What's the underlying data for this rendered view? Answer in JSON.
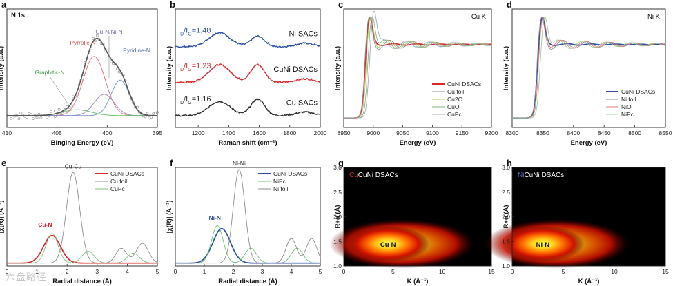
{
  "watermark": "六盘路径",
  "chart_data": [
    {
      "panel": "a",
      "type": "line",
      "title": "N 1s",
      "xlabel": "Binging Energy (eV)",
      "ylabel": "Intensity (a.u.)",
      "xlim": [
        410,
        395
      ],
      "ylim": [
        0,
        1
      ],
      "x_reversed": true,
      "y_ticks_hidden": true,
      "x_ticks": [
        410,
        405,
        400,
        395
      ],
      "series": [
        {
          "name": "Pyrrolic-N",
          "color": "#e8797a",
          "component": {
            "center": 401.3,
            "width": 1.1,
            "height": 0.5
          }
        },
        {
          "name": "Cu-N/Ni-N",
          "color": "#9b8fc0",
          "component": {
            "center": 400.3,
            "width": 1.0,
            "height": 0.18
          }
        },
        {
          "name": "Pyridine-N",
          "color": "#7f95d1",
          "component": {
            "center": 398.7,
            "width": 0.9,
            "height": 0.3
          }
        },
        {
          "name": "Graphitic-N",
          "color": "#6cbf73",
          "component": {
            "center": 403.0,
            "width": 1.4,
            "height": 0.05
          }
        }
      ],
      "envelope_color": "#555555",
      "baseline": 0.1,
      "annotations": [
        "N 1s",
        "Cu-N/Ni-N",
        "Pyrrolic-N",
        "Pyridine-N",
        "Graphitic-N"
      ],
      "annotation_colors": {
        "Cu-N/Ni-N": "#7a6fa8",
        "Pyrrolic-N": "#d9534f",
        "Pyridine-N": "#5a6fb8",
        "Graphitic-N": "#3a9a44"
      }
    },
    {
      "panel": "b",
      "type": "line",
      "xlabel": "Raman shift (cm⁻¹)",
      "ylabel": "Intensity (a.u.)",
      "xlim": [
        1050,
        2000
      ],
      "ylim": [
        0,
        1
      ],
      "y_ticks_hidden": true,
      "x_ticks": [
        1200,
        1400,
        1600,
        1800,
        2000
      ],
      "series": [
        {
          "name": "Ni SACs",
          "color": "#2d4fa0",
          "offset": 0.68,
          "ratio": "ID/IG=1.48",
          "d_amp": 0.12,
          "g_amp": 0.09
        },
        {
          "name": "CuNi DSACs",
          "color": "#d8282a",
          "offset": 0.38,
          "ratio": "ID/IG=1.23",
          "d_amp": 0.15,
          "g_amp": 0.15
        },
        {
          "name": "Cu SACs",
          "color": "#2b2b2b",
          "offset": 0.1,
          "ratio": "ID/IG=1.16",
          "d_amp": 0.12,
          "g_amp": 0.14
        }
      ],
      "ratio_labels": [
        "I",
        "D",
        "/I",
        "G",
        "=1.48",
        "=1.23",
        "=1.16"
      ]
    },
    {
      "panel": "c",
      "type": "line",
      "title": "Cu K",
      "xlabel": "Energy (eV)",
      "ylabel": "Intensity (a.u.)",
      "xlim": [
        8950,
        9200
      ],
      "ylim": [
        0,
        1
      ],
      "y_ticks_hidden": true,
      "x_ticks": [
        8950,
        9000,
        9050,
        9100,
        9150,
        9200
      ],
      "edge": 8985,
      "series": [
        {
          "name": "CuNi DSACs",
          "color": "#d8282a"
        },
        {
          "name": "Cu foil",
          "color": "#8c8c8c"
        },
        {
          "name": "Cu2O",
          "color": "#b9c26a"
        },
        {
          "name": "CuO",
          "color": "#7fbf7b"
        },
        {
          "name": "CuPc",
          "color": "#a6a6c8"
        }
      ]
    },
    {
      "panel": "d",
      "type": "line",
      "title": "Ni K",
      "xlabel": "Energy (eV)",
      "ylabel": "Intensity (a.u.)",
      "xlim": [
        8300,
        8550
      ],
      "ylim": [
        0,
        1
      ],
      "y_ticks_hidden": true,
      "x_ticks": [
        8300,
        8350,
        8400,
        8450,
        8500,
        8550
      ],
      "edge": 8340,
      "series": [
        {
          "name": "CuNi DSACs",
          "color": "#2d4fa0"
        },
        {
          "name": "Ni foil",
          "color": "#8c8c8c"
        },
        {
          "name": "NiO",
          "color": "#e8797a"
        },
        {
          "name": "NiPc",
          "color": "#9ccf9a"
        }
      ]
    },
    {
      "panel": "e",
      "type": "line",
      "xlabel": "Radial distance (Å)",
      "ylabel": "|χ(R)| (Å⁻³)",
      "xlim": [
        0,
        5
      ],
      "ylim": [
        0,
        1
      ],
      "y_ticks_hidden": true,
      "x_ticks": [
        0,
        1,
        2,
        3,
        4,
        5
      ],
      "series": [
        {
          "name": "CuNi DSACs",
          "color": "#d8282a",
          "peaks": [
            [
              1.5,
              0.28,
              0.28
            ]
          ]
        },
        {
          "name": "Cu foil",
          "color": "#8c8c8c",
          "peaks": [
            [
              2.2,
              0.92,
              0.22
            ],
            [
              3.8,
              0.15,
              0.18
            ],
            [
              4.5,
              0.2,
              0.2
            ]
          ]
        },
        {
          "name": "CuPc",
          "color": "#7fbf7b",
          "peaks": [
            [
              1.5,
              0.3,
              0.2
            ],
            [
              2.7,
              0.12,
              0.2
            ],
            [
              4.2,
              0.1,
              0.2
            ]
          ]
        }
      ],
      "annotations": {
        "Cu-Cu": "#333333",
        "Cu-N": "#d8282a"
      }
    },
    {
      "panel": "f",
      "type": "line",
      "xlabel": "Radial distance (Å)",
      "ylabel": "|χ(R)| (Å⁻³)",
      "xlim": [
        0,
        5
      ],
      "ylim": [
        0,
        1
      ],
      "y_ticks_hidden": true,
      "x_ticks": [
        0,
        1,
        2,
        3,
        4,
        5
      ],
      "series": [
        {
          "name": "CuNi DSACs",
          "color": "#2d4fa0",
          "peaks": [
            [
              1.6,
              0.35,
              0.3
            ]
          ]
        },
        {
          "name": "NiPc",
          "color": "#6cbf73",
          "peaks": [
            [
              1.45,
              0.38,
              0.2
            ],
            [
              2.6,
              0.15,
              0.2
            ],
            [
              4.2,
              0.15,
              0.2
            ]
          ]
        },
        {
          "name": "Ni foil",
          "color": "#8c8c8c",
          "peaks": [
            [
              2.2,
              0.95,
              0.2
            ],
            [
              4.0,
              0.25,
              0.18
            ],
            [
              4.7,
              0.25,
              0.18
            ]
          ]
        }
      ],
      "annotations": {
        "Ni-Ni": "#333333",
        "Ni-N": "#2d4fa0"
      }
    },
    {
      "panel": "g",
      "type": "heatmap",
      "title_prefix": "Cu",
      "title": "CuNi DSACs",
      "title_prefix_color": "#d8282a",
      "xlabel": "K (Å⁻¹)",
      "ylabel": "R+α (Å)",
      "xlim": [
        0,
        15
      ],
      "ylim": [
        1.0,
        3.0
      ],
      "x_ticks": [
        0,
        5,
        10,
        15
      ],
      "y_ticks": [
        1.0,
        1.5,
        2.0,
        2.5,
        3.0
      ],
      "hotspot": {
        "k": 4.5,
        "r": 1.45,
        "label": "Cu-N"
      }
    },
    {
      "panel": "h",
      "type": "heatmap",
      "title_prefix": "Ni",
      "title": "CuNi DSACs",
      "title_prefix_color": "#5a6fb8",
      "xlabel": "K (Å⁻¹)",
      "ylabel": "R+α (Å)",
      "xlim": [
        0,
        15
      ],
      "ylim": [
        1.0,
        3.0
      ],
      "x_ticks": [
        0,
        5,
        10,
        15
      ],
      "y_ticks": [
        1.0,
        1.5,
        2.0,
        2.5,
        3.0
      ],
      "hotspot": {
        "k": 3.0,
        "r": 1.45,
        "label": "Ni-N"
      }
    }
  ]
}
